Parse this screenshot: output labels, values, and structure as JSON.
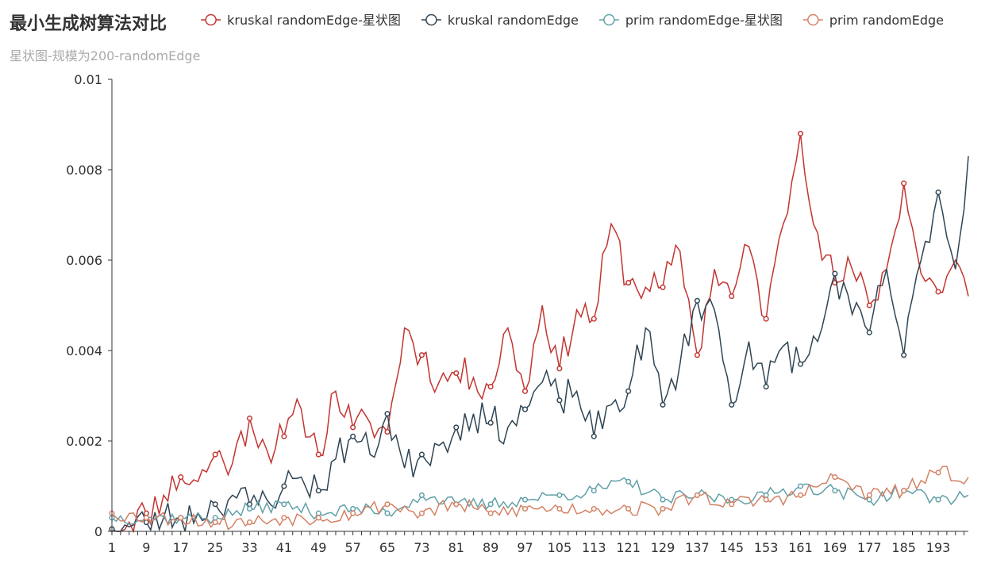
{
  "title": "最小生成树算法对比",
  "subtitle": "星状图-规模为200-randomEdge",
  "chart_data": {
    "type": "line",
    "title": "最小生成树算法对比",
    "subtitle": "星状图-规模为200-randomEdge",
    "xlabel": "",
    "ylabel": "",
    "xlim": [
      1,
      200
    ],
    "ylim": [
      0,
      0.01
    ],
    "x_ticks": [
      1,
      9,
      17,
      25,
      33,
      41,
      49,
      57,
      65,
      73,
      81,
      89,
      97,
      105,
      113,
      121,
      129,
      137,
      145,
      153,
      161,
      169,
      177,
      185,
      193
    ],
    "y_ticks": [
      "0",
      "0.002",
      "0.004",
      "0.006",
      "0.008",
      "0.01"
    ],
    "legend_position": "top-right",
    "grid": false,
    "series": [
      {
        "name": "kruskal randomEdge-星状图",
        "color": "#c23531",
        "anchors": [
          [
            1,
            5e-05
          ],
          [
            5,
            0.0002
          ],
          [
            9,
            0.0004
          ],
          [
            13,
            0.0008
          ],
          [
            17,
            0.0012
          ],
          [
            21,
            0.0011
          ],
          [
            25,
            0.0017
          ],
          [
            29,
            0.0015
          ],
          [
            33,
            0.0025
          ],
          [
            37,
            0.0018
          ],
          [
            41,
            0.0021
          ],
          [
            45,
            0.0027
          ],
          [
            49,
            0.0017
          ],
          [
            53,
            0.0031
          ],
          [
            57,
            0.0023
          ],
          [
            61,
            0.0024
          ],
          [
            65,
            0.0022
          ],
          [
            69,
            0.0045
          ],
          [
            73,
            0.0039
          ],
          [
            77,
            0.0033
          ],
          [
            81,
            0.0035
          ],
          [
            85,
            0.0034
          ],
          [
            89,
            0.0032
          ],
          [
            93,
            0.0045
          ],
          [
            97,
            0.0031
          ],
          [
            101,
            0.005
          ],
          [
            105,
            0.0036
          ],
          [
            109,
            0.0049
          ],
          [
            113,
            0.0047
          ],
          [
            117,
            0.0068
          ],
          [
            121,
            0.0055
          ],
          [
            125,
            0.0054
          ],
          [
            129,
            0.0054
          ],
          [
            133,
            0.0062
          ],
          [
            137,
            0.0039
          ],
          [
            141,
            0.0058
          ],
          [
            145,
            0.0052
          ],
          [
            149,
            0.0063
          ],
          [
            153,
            0.0047
          ],
          [
            157,
            0.0068
          ],
          [
            161,
            0.0088
          ],
          [
            165,
            0.0066
          ],
          [
            169,
            0.0055
          ],
          [
            173,
            0.0058
          ],
          [
            177,
            0.005
          ],
          [
            181,
            0.0058
          ],
          [
            185,
            0.0077
          ],
          [
            189,
            0.0057
          ],
          [
            193,
            0.0053
          ],
          [
            197,
            0.006
          ],
          [
            200,
            0.0052
          ]
        ],
        "amplitude": 0.0004,
        "seed": 11
      },
      {
        "name": "kruskal randomEdge",
        "color": "#2f4554",
        "anchors": [
          [
            1,
            5e-05
          ],
          [
            5,
            0.0001
          ],
          [
            9,
            0.0002
          ],
          [
            13,
            0.0003
          ],
          [
            17,
            0.0003
          ],
          [
            21,
            0.0004
          ],
          [
            25,
            0.0006
          ],
          [
            29,
            0.0008
          ],
          [
            33,
            0.0006
          ],
          [
            37,
            0.0007
          ],
          [
            41,
            0.001
          ],
          [
            45,
            0.0012
          ],
          [
            49,
            0.0009
          ],
          [
            53,
            0.0016
          ],
          [
            57,
            0.0021
          ],
          [
            61,
            0.0017
          ],
          [
            65,
            0.0026
          ],
          [
            69,
            0.0014
          ],
          [
            73,
            0.0017
          ],
          [
            77,
            0.0019
          ],
          [
            81,
            0.0023
          ],
          [
            85,
            0.0026
          ],
          [
            89,
            0.0024
          ],
          [
            93,
            0.0023
          ],
          [
            97,
            0.0027
          ],
          [
            101,
            0.0033
          ],
          [
            105,
            0.0029
          ],
          [
            109,
            0.0031
          ],
          [
            113,
            0.0021
          ],
          [
            117,
            0.0028
          ],
          [
            121,
            0.0031
          ],
          [
            125,
            0.0045
          ],
          [
            129,
            0.0028
          ],
          [
            133,
            0.0037
          ],
          [
            137,
            0.0051
          ],
          [
            141,
            0.0049
          ],
          [
            145,
            0.0028
          ],
          [
            149,
            0.0042
          ],
          [
            153,
            0.0032
          ],
          [
            157,
            0.0041
          ],
          [
            161,
            0.0037
          ],
          [
            165,
            0.0042
          ],
          [
            169,
            0.0057
          ],
          [
            173,
            0.0048
          ],
          [
            177,
            0.0044
          ],
          [
            181,
            0.0058
          ],
          [
            185,
            0.0039
          ],
          [
            189,
            0.006
          ],
          [
            193,
            0.0075
          ],
          [
            197,
            0.0058
          ],
          [
            200,
            0.0083
          ]
        ],
        "amplitude": 0.0004,
        "seed": 23
      },
      {
        "name": "prim randomEdge-星状图",
        "color": "#61a0a8",
        "anchors": [
          [
            1,
            0.0003
          ],
          [
            9,
            0.0003
          ],
          [
            17,
            0.0003
          ],
          [
            25,
            0.0003
          ],
          [
            33,
            0.0005
          ],
          [
            41,
            0.0006
          ],
          [
            49,
            0.0004
          ],
          [
            57,
            0.0005
          ],
          [
            65,
            0.0004
          ],
          [
            73,
            0.0008
          ],
          [
            81,
            0.0006
          ],
          [
            89,
            0.0006
          ],
          [
            97,
            0.0007
          ],
          [
            105,
            0.0008
          ],
          [
            113,
            0.0009
          ],
          [
            121,
            0.0011
          ],
          [
            129,
            0.0007
          ],
          [
            137,
            0.0008
          ],
          [
            145,
            0.0007
          ],
          [
            153,
            0.0008
          ],
          [
            161,
            0.001
          ],
          [
            169,
            0.0009
          ],
          [
            177,
            0.0007
          ],
          [
            185,
            0.0009
          ],
          [
            193,
            0.0007
          ],
          [
            200,
            0.0008
          ]
        ],
        "amplitude": 0.00015,
        "seed": 37
      },
      {
        "name": "prim randomEdge",
        "color": "#d48265",
        "anchors": [
          [
            1,
            0.0004
          ],
          [
            9,
            0.0003
          ],
          [
            17,
            0.0003
          ],
          [
            25,
            0.0002
          ],
          [
            33,
            0.0002
          ],
          [
            41,
            0.0003
          ],
          [
            49,
            0.0003
          ],
          [
            57,
            0.0004
          ],
          [
            65,
            0.0006
          ],
          [
            73,
            0.0004
          ],
          [
            81,
            0.0006
          ],
          [
            89,
            0.0004
          ],
          [
            97,
            0.0005
          ],
          [
            105,
            0.0005
          ],
          [
            113,
            0.0005
          ],
          [
            121,
            0.0005
          ],
          [
            129,
            0.0005
          ],
          [
            137,
            0.0008
          ],
          [
            145,
            0.0006
          ],
          [
            153,
            0.0007
          ],
          [
            161,
            0.0008
          ],
          [
            169,
            0.0012
          ],
          [
            177,
            0.0008
          ],
          [
            185,
            0.0009
          ],
          [
            193,
            0.0013
          ],
          [
            200,
            0.0012
          ]
        ],
        "amplitude": 0.00017,
        "seed": 53
      }
    ]
  }
}
